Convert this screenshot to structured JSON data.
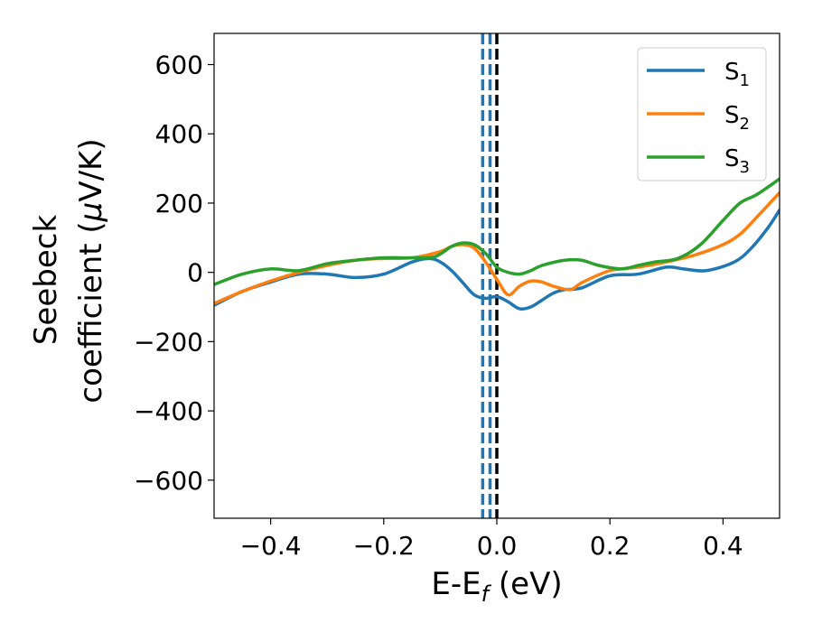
{
  "chart_data": {
    "type": "line",
    "title": "",
    "xlabel": {
      "main": "E-E",
      "sub": "f",
      "suffix": " (eV)"
    },
    "ylabel": {
      "line1": "Seebeck",
      "line2_main": "coefficient  (",
      "line2_mu": "μ",
      "line2_suffix": "V/K)"
    },
    "xlim": [
      -0.5,
      0.5
    ],
    "ylim": [
      -710,
      690
    ],
    "xticks": [
      -0.4,
      -0.2,
      0.0,
      0.2,
      0.4
    ],
    "xtick_labels": [
      "−0.4",
      "−0.2",
      "0.0",
      "0.2",
      "0.4"
    ],
    "yticks": [
      -600,
      -400,
      -200,
      0,
      200,
      400,
      600
    ],
    "ytick_labels": [
      "−600",
      "−400",
      "−200",
      "0",
      "200",
      "400",
      "600"
    ],
    "grid": false,
    "legend_position": "top-right",
    "vlines": [
      {
        "x": -0.025,
        "style": "dashed",
        "color": "#1f77b4"
      },
      {
        "x": -0.012,
        "style": "dashed",
        "color": "#1f77b4"
      },
      {
        "x": 0.0,
        "style": "dashed",
        "color": "#000000"
      }
    ],
    "series": [
      {
        "name": "S",
        "sub": "1",
        "color": "#1f77b4",
        "x": [
          -0.5,
          -0.45,
          -0.4,
          -0.35,
          -0.3,
          -0.25,
          -0.2,
          -0.15,
          -0.12,
          -0.1,
          -0.08,
          -0.06,
          -0.04,
          -0.02,
          0.0,
          0.02,
          0.04,
          0.06,
          0.08,
          0.1,
          0.12,
          0.15,
          0.2,
          0.25,
          0.3,
          0.33,
          0.37,
          0.42,
          0.45,
          0.48,
          0.5
        ],
        "y": [
          -95,
          -55,
          -28,
          -5,
          -5,
          -15,
          -5,
          30,
          40,
          30,
          5,
          -30,
          -65,
          -75,
          -70,
          -85,
          -105,
          -100,
          -80,
          -60,
          -50,
          -45,
          -10,
          -5,
          15,
          10,
          5,
          30,
          70,
          130,
          180
        ]
      },
      {
        "name": "S",
        "sub": "2",
        "color": "#ff7f0e",
        "x": [
          -0.5,
          -0.45,
          -0.4,
          -0.35,
          -0.3,
          -0.25,
          -0.2,
          -0.15,
          -0.1,
          -0.08,
          -0.06,
          -0.04,
          -0.02,
          0.0,
          0.02,
          0.04,
          0.06,
          0.08,
          0.1,
          0.13,
          0.15,
          0.2,
          0.25,
          0.3,
          0.35,
          0.4,
          0.43,
          0.46,
          0.5
        ],
        "y": [
          -90,
          -55,
          -25,
          0,
          20,
          35,
          40,
          42,
          60,
          75,
          80,
          70,
          30,
          -20,
          -65,
          -40,
          -25,
          -28,
          -40,
          -50,
          -30,
          5,
          15,
          30,
          50,
          80,
          110,
          160,
          230
        ]
      },
      {
        "name": "S",
        "sub": "3",
        "color": "#2ca02c",
        "x": [
          -0.5,
          -0.45,
          -0.4,
          -0.35,
          -0.3,
          -0.25,
          -0.2,
          -0.15,
          -0.11,
          -0.08,
          -0.06,
          -0.04,
          -0.02,
          0.0,
          0.02,
          0.04,
          0.06,
          0.08,
          0.12,
          0.15,
          0.18,
          0.22,
          0.25,
          0.28,
          0.32,
          0.36,
          0.4,
          0.43,
          0.46,
          0.5
        ],
        "y": [
          -35,
          -5,
          10,
          5,
          25,
          35,
          42,
          42,
          45,
          75,
          85,
          80,
          55,
          15,
          0,
          -5,
          5,
          20,
          35,
          35,
          20,
          10,
          20,
          30,
          40,
          80,
          150,
          200,
          225,
          270
        ]
      }
    ]
  }
}
